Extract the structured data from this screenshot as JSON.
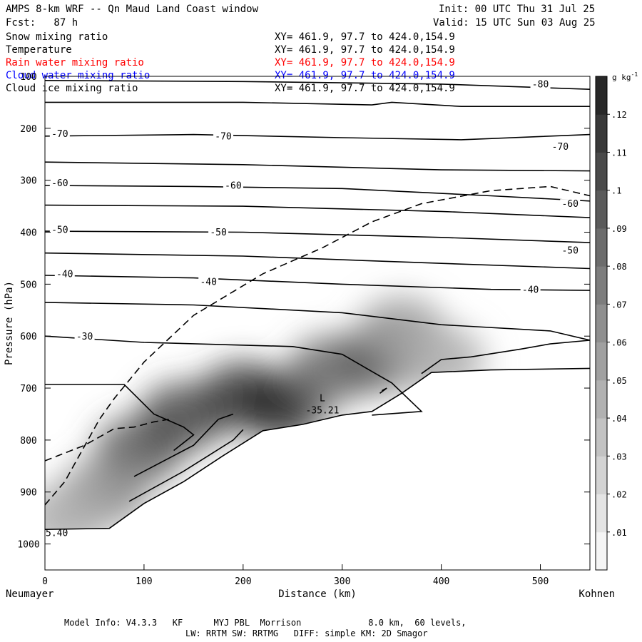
{
  "header": {
    "title": "AMPS 8-km WRF -- Qn Maud Land Coast window",
    "forecast": "Fcst:   87 h",
    "init": "Init: 00 UTC Thu 31 Jul 25",
    "valid": "Valid: 15 UTC Sun 03 Aug 25"
  },
  "fields": [
    {
      "name": "Snow mixing ratio",
      "xy": "XY= 461.9, 97.7 to 424.0,154.9",
      "color": "#000000"
    },
    {
      "name": "Temperature",
      "xy": "XY= 461.9, 97.7 to 424.0,154.9",
      "color": "#000000"
    },
    {
      "name": "Rain water mixing ratio",
      "xy": "XY= 461.9, 97.7 to 424.0,154.9",
      "color": "#ff0000"
    },
    {
      "name": "Cloud water mixing ratio",
      "xy": "XY= 461.9, 97.7 to 424.0,154.9",
      "color": "#0000ff"
    },
    {
      "name": "Cloud ice mixing ratio",
      "xy": "XY= 461.9, 97.7 to 424.0,154.9",
      "color": "#000000"
    }
  ],
  "footer": {
    "line1": "Model Info: V4.3.3   KF      MYJ PBL  Morrison             8.0 km,  60 levels,",
    "line2": "LW: RRTM SW: RRTMG   DIFF: simple KM: 2D Smagor"
  },
  "chart_data": {
    "type": "cross-section",
    "xlabel": "Distance (km)",
    "ylabel": "Pressure (hPa)",
    "xlim": [
      0,
      550
    ],
    "ylim": [
      1050,
      100
    ],
    "x_ticks": [
      0,
      100,
      200,
      300,
      400,
      500
    ],
    "y_ticks": [
      100,
      200,
      300,
      400,
      500,
      600,
      700,
      800,
      900,
      1000
    ],
    "endpoints": {
      "left": "Neumayer",
      "right": "Kohnen"
    },
    "colorbar": {
      "unit": "g kg",
      "unit_exponent": "-1",
      "ticks": [
        ".01",
        ".02",
        ".03",
        ".04",
        ".05",
        ".06",
        ".07",
        ".08",
        ".09",
        ".1",
        ".11",
        ".12"
      ],
      "range": [
        0.005,
        0.13
      ]
    },
    "temperature_labels": [
      {
        "text": "-80",
        "x": 500,
        "p": 120
      },
      {
        "text": "-70",
        "x": 15,
        "p": 215
      },
      {
        "text": "-70",
        "x": 180,
        "p": 220
      },
      {
        "text": "-70",
        "x": 520,
        "p": 240
      },
      {
        "text": "-60",
        "x": 15,
        "p": 310
      },
      {
        "text": "-60",
        "x": 190,
        "p": 315
      },
      {
        "text": "-60",
        "x": 530,
        "p": 350
      },
      {
        "text": "-50",
        "x": 15,
        "p": 400
      },
      {
        "text": "-50",
        "x": 175,
        "p": 405
      },
      {
        "text": "-50",
        "x": 530,
        "p": 440
      },
      {
        "text": "-40",
        "x": 20,
        "p": 485
      },
      {
        "text": "-40",
        "x": 165,
        "p": 500
      },
      {
        "text": "-40",
        "x": 490,
        "p": 515
      },
      {
        "text": "-30",
        "x": 40,
        "p": 605
      }
    ],
    "min_label": {
      "symbol": "L",
      "value": "-35.21",
      "x": 280,
      "p": 742
    },
    "corner_label": {
      "text": "5.40",
      "x": 12,
      "p": 978
    },
    "snow_blobs": [
      {
        "x": 95,
        "p": 820,
        "q": 0.1
      },
      {
        "x": 140,
        "p": 755,
        "q": 0.11
      },
      {
        "x": 200,
        "p": 715,
        "q": 0.12
      },
      {
        "x": 240,
        "p": 735,
        "q": 0.13
      },
      {
        "x": 290,
        "p": 665,
        "q": 0.09
      },
      {
        "x": 340,
        "p": 640,
        "q": 0.1
      },
      {
        "x": 360,
        "p": 590,
        "q": 0.06
      },
      {
        "x": 400,
        "p": 645,
        "q": 0.05
      },
      {
        "x": 60,
        "p": 900,
        "q": 0.07
      },
      {
        "x": 20,
        "p": 950,
        "q": 0.05
      }
    ]
  }
}
